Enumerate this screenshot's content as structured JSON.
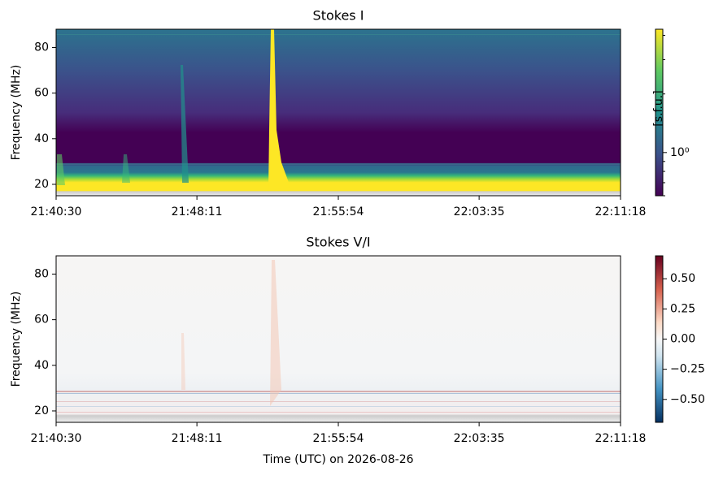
{
  "chart_data": [
    {
      "type": "heatmap",
      "title": "Stokes I",
      "ylabel": "Frequency (MHz)",
      "xlim": [
        "21:40:30",
        "22:11:18"
      ],
      "xticks": [
        "21:40:30",
        "21:48:11",
        "21:55:54",
        "22:03:35",
        "22:11:18"
      ],
      "ylim": [
        15,
        88
      ],
      "yticks": [
        20,
        40,
        60,
        80
      ],
      "colorbar": {
        "label": "[s.f.u.]",
        "colormap": "viridis",
        "scale": "log",
        "clim": [
          0.6,
          4.3
        ],
        "ticks": [
          {
            "value": 1,
            "label": "10⁰"
          }
        ],
        "minor_ticks": [
          0.6,
          0.7,
          0.8,
          0.9,
          2,
          3,
          4
        ]
      }
    },
    {
      "type": "heatmap",
      "title": "Stokes V/I",
      "ylabel": "Frequency (MHz)",
      "xlabel": "Time (UTC) on 2026-08-26",
      "xlim": [
        "21:40:30",
        "22:11:18"
      ],
      "xticks": [
        "21:40:30",
        "21:48:11",
        "21:55:54",
        "22:03:35",
        "22:11:18"
      ],
      "ylim": [
        15,
        88
      ],
      "yticks": [
        20,
        40,
        60,
        80
      ],
      "colorbar": {
        "colormap": "RdBu_r",
        "scale": "linear",
        "clim": [
          -0.69,
          0.69
        ],
        "ticks": [
          {
            "value": 0.5,
            "label": "0.50"
          },
          {
            "value": 0.25,
            "label": "0.25"
          },
          {
            "value": 0,
            "label": "0.00"
          },
          {
            "value": -0.25,
            "label": "−0.25"
          },
          {
            "value": -0.5,
            "label": "−0.50"
          }
        ]
      }
    }
  ]
}
